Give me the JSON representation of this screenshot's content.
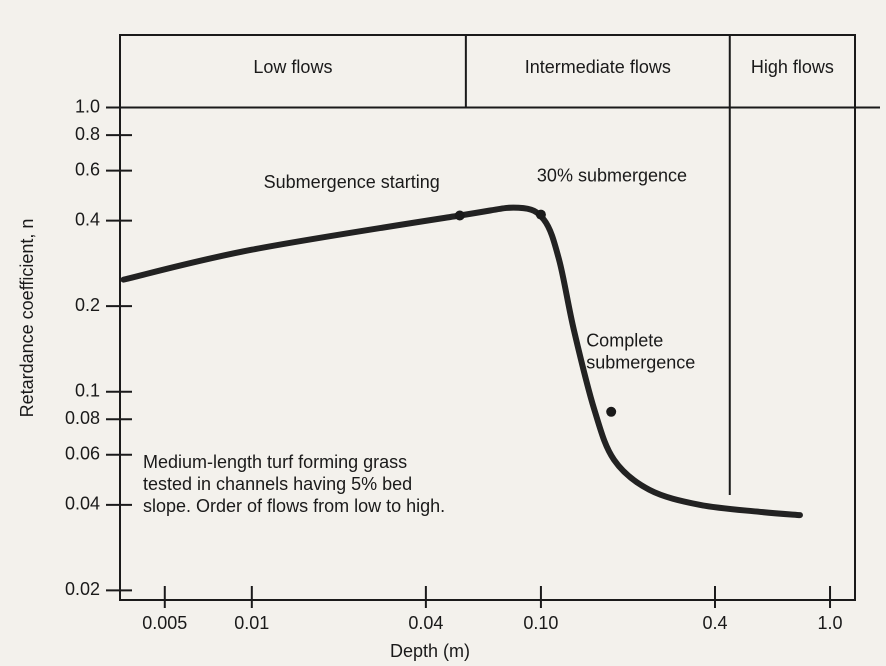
{
  "chart_data": {
    "type": "line",
    "x_label": "Depth (m)",
    "y_label": "Retardance coefficient, n",
    "log_x": true,
    "log_y": true,
    "xlim": [
      0.0035,
      1.22
    ],
    "ylim": [
      0.0185,
      1.8
    ],
    "xticks": [
      0.005,
      0.01,
      0.04,
      {
        "value": 0.1,
        "label": "0.10"
      },
      0.4,
      {
        "value": 1,
        "label": "1.0"
      }
    ],
    "yticks": [
      {
        "value": 1,
        "label": "1.0"
      },
      0.8,
      0.6,
      0.4,
      0.2,
      0.1,
      0.08,
      0.06,
      0.04,
      0.02
    ],
    "hline": 1,
    "dividers": [
      0.055,
      0.45
    ],
    "regions": [
      "Low flows",
      "Intermediate flows",
      "High flows"
    ],
    "series": [
      {
        "color": "#222222",
        "x": [
          0.0036,
          0.01,
          0.0524,
          0.0837,
          0.1024,
          0.1155,
          0.13,
          0.153,
          0.179,
          0.237,
          0.354,
          0.57,
          0.787
        ],
        "values": [
          0.248,
          0.316,
          0.417,
          0.444,
          0.403,
          0.292,
          0.165,
          0.0865,
          0.0576,
          0.0452,
          0.04,
          0.0378,
          0.0368
        ]
      }
    ],
    "annotations": [
      {
        "text": [
          "Submergence starting"
        ],
        "x": 0.0524,
        "y": 0.417
      },
      {
        "text": [
          "30% submergence"
        ],
        "x": 0.1,
        "y": 0.42
      },
      {
        "text": [
          "Complete",
          "submergence"
        ],
        "x": 0.175,
        "y": 0.085
      }
    ],
    "note": [
      "Medium-length turf forming grass",
      "tested in channels having 5% bed",
      "slope.  Order of flows from low to high."
    ]
  }
}
